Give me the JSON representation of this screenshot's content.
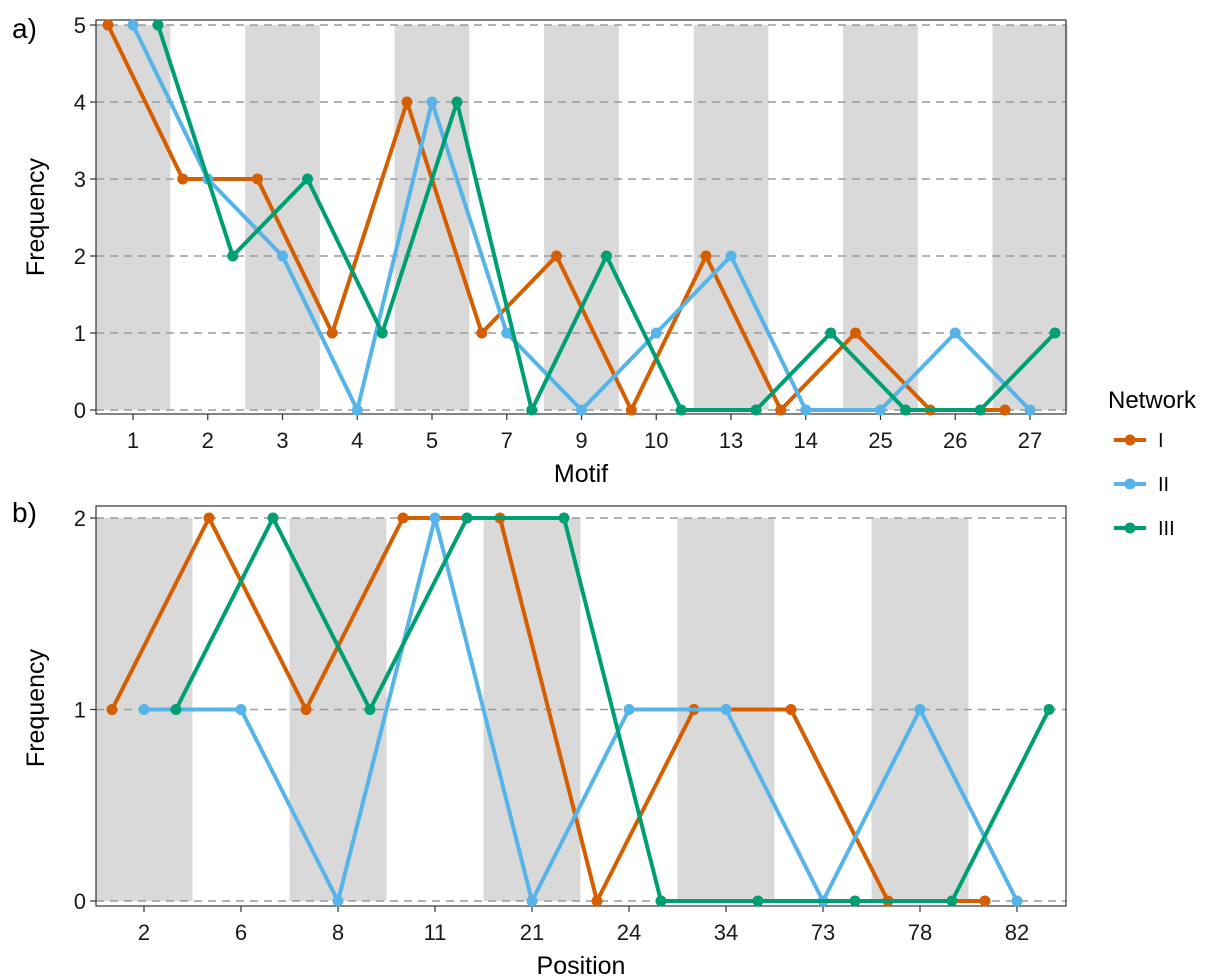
{
  "legend": {
    "title": "Network",
    "entries": [
      {
        "name": "I",
        "color": "#D55E00"
      },
      {
        "name": "II",
        "color": "#56B4E9"
      },
      {
        "name": "III",
        "color": "#009E73"
      }
    ]
  },
  "chart_data": [
    {
      "type": "line",
      "panel_label": "a)",
      "xlabel": "Motif",
      "ylabel": "Frequency",
      "categories": [
        "1",
        "2",
        "3",
        "4",
        "5",
        "7",
        "9",
        "10",
        "13",
        "14",
        "25",
        "26",
        "27"
      ],
      "ylim": [
        0,
        5
      ],
      "yticks": [
        0,
        1,
        2,
        3,
        4,
        5
      ],
      "grid": "dashed horizontal",
      "background_bands": "alternating grey",
      "legend_position": "right",
      "series": [
        {
          "name": "I",
          "color": "#D55E00",
          "x": [
            1,
            2,
            3,
            4,
            5,
            7,
            9,
            10,
            13,
            14,
            25,
            26,
            27
          ],
          "values": [
            5,
            3,
            3,
            1,
            4,
            1,
            2,
            0,
            2,
            0,
            1,
            0,
            0
          ]
        },
        {
          "name": "II",
          "color": "#56B4E9",
          "x": [
            1,
            2,
            3,
            4,
            5,
            7,
            9,
            10,
            13,
            14,
            25,
            26,
            27
          ],
          "values": [
            5,
            3,
            2,
            0,
            4,
            1,
            0,
            1,
            2,
            0,
            0,
            1,
            0
          ]
        },
        {
          "name": "III",
          "color": "#009E73",
          "x": [
            1,
            2,
            3,
            4,
            5,
            7,
            9,
            10,
            13,
            14,
            25,
            26,
            27
          ],
          "values": [
            5,
            2,
            3,
            1,
            4,
            0,
            2,
            0,
            0,
            1,
            0,
            0,
            1
          ]
        }
      ]
    },
    {
      "type": "line",
      "panel_label": "b)",
      "xlabel": "Position",
      "ylabel": "Frequency",
      "categories": [
        "2",
        "6",
        "8",
        "11",
        "21",
        "24",
        "34",
        "73",
        "78",
        "82"
      ],
      "ylim": [
        0,
        2
      ],
      "yticks": [
        0,
        1,
        2
      ],
      "grid": "dashed horizontal",
      "background_bands": "alternating grey",
      "series": [
        {
          "name": "I",
          "color": "#D55E00",
          "x": [
            2,
            6,
            8,
            11,
            21,
            24,
            34,
            73,
            78,
            82
          ],
          "values": [
            1,
            2,
            1,
            2,
            2,
            0,
            1,
            1,
            0,
            0
          ]
        },
        {
          "name": "II",
          "color": "#56B4E9",
          "x": [
            2,
            6,
            8,
            11,
            21,
            24,
            34,
            73,
            78,
            82
          ],
          "values": [
            1,
            1,
            0,
            2,
            0,
            1,
            1,
            0,
            1,
            0
          ]
        },
        {
          "name": "III",
          "color": "#009E73",
          "x": [
            2,
            6,
            8,
            11,
            21,
            24,
            34,
            73,
            78,
            82
          ],
          "values": [
            1,
            2,
            1,
            2,
            2,
            0,
            0,
            0,
            0,
            1
          ]
        }
      ]
    }
  ]
}
